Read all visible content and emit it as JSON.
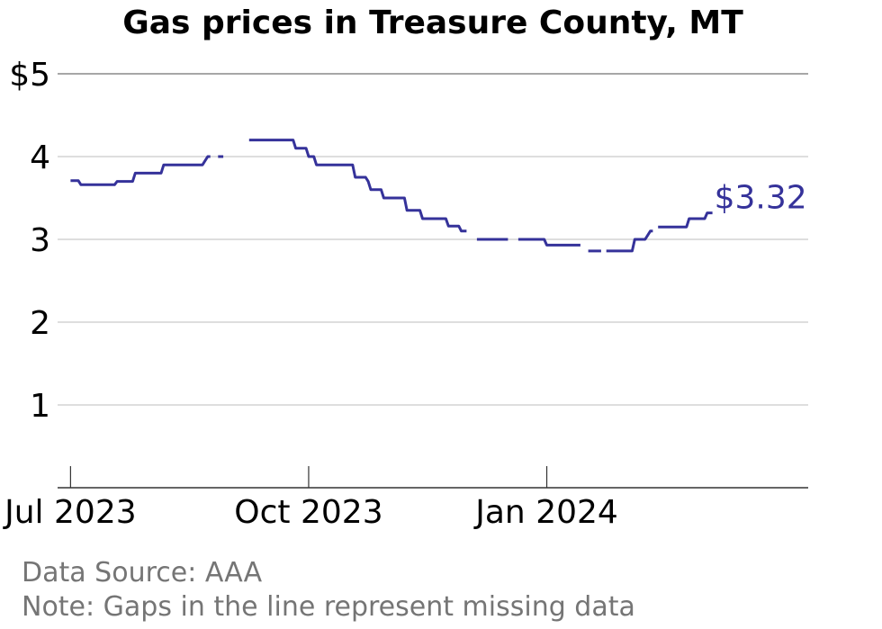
{
  "chart_data": {
    "type": "line",
    "title": "Gas prices in Treasure County, MT",
    "xlabel": "",
    "ylabel": "",
    "ylim": [
      0,
      5
    ],
    "xlim": [
      "2023-06-26",
      "2024-04-11"
    ],
    "y_ticks": [
      {
        "value": 5,
        "label": "$5"
      },
      {
        "value": 4,
        "label": "4"
      },
      {
        "value": 3,
        "label": "3"
      },
      {
        "value": 2,
        "label": "2"
      },
      {
        "value": 1,
        "label": "1"
      }
    ],
    "x_ticks": [
      {
        "value": "2023-07-01",
        "label": "Jul 2023"
      },
      {
        "value": "2023-10-01",
        "label": "Oct 2023"
      },
      {
        "value": "2024-01-01",
        "label": "Jan 2024"
      }
    ],
    "grid": true,
    "line_color": "#35329a",
    "end_label": "$3.32",
    "series": [
      {
        "segments": [
          [
            [
              "2023-07-01",
              3.71
            ],
            [
              "2023-07-04",
              3.71
            ],
            [
              "2023-07-05",
              3.66
            ],
            [
              "2023-07-18",
              3.66
            ],
            [
              "2023-07-19",
              3.7
            ],
            [
              "2023-07-25",
              3.7
            ],
            [
              "2023-07-26",
              3.8
            ],
            [
              "2023-08-05",
              3.8
            ],
            [
              "2023-08-06",
              3.9
            ],
            [
              "2023-08-21",
              3.9
            ],
            [
              "2023-08-23",
              4.0
            ],
            [
              "2023-08-24",
              4.0
            ]
          ],
          [
            [
              "2023-08-27",
              4.0
            ],
            [
              "2023-08-29",
              4.0
            ]
          ],
          [
            [
              "2023-09-08",
              4.2
            ],
            [
              "2023-09-25",
              4.2
            ],
            [
              "2023-09-26",
              4.1
            ],
            [
              "2023-09-30",
              4.1
            ],
            [
              "2023-10-01",
              4.0
            ],
            [
              "2023-10-03",
              4.0
            ],
            [
              "2023-10-04",
              3.9
            ],
            [
              "2023-10-18",
              3.9
            ],
            [
              "2023-10-19",
              3.75
            ],
            [
              "2023-10-23",
              3.75
            ],
            [
              "2023-10-24",
              3.7
            ],
            [
              "2023-10-25",
              3.6
            ],
            [
              "2023-10-29",
              3.6
            ],
            [
              "2023-10-30",
              3.5
            ],
            [
              "2023-11-07",
              3.5
            ],
            [
              "2023-11-08",
              3.35
            ],
            [
              "2023-11-13",
              3.35
            ],
            [
              "2023-11-14",
              3.25
            ],
            [
              "2023-11-23",
              3.25
            ],
            [
              "2023-11-24",
              3.16
            ],
            [
              "2023-11-28",
              3.16
            ],
            [
              "2023-11-29",
              3.1
            ],
            [
              "2023-12-01",
              3.1
            ]
          ],
          [
            [
              "2023-12-05",
              3.0
            ],
            [
              "2023-12-17",
              3.0
            ]
          ],
          [
            [
              "2023-12-21",
              3.0
            ],
            [
              "2023-12-31",
              3.0
            ],
            [
              "2024-01-01",
              2.93
            ],
            [
              "2024-01-14",
              2.93
            ]
          ],
          [
            [
              "2024-01-17",
              2.86
            ],
            [
              "2024-01-22",
              2.86
            ]
          ],
          [
            [
              "2024-01-24",
              2.86
            ],
            [
              "2024-02-03",
              2.86
            ],
            [
              "2024-02-04",
              3.0
            ],
            [
              "2024-02-08",
              3.0
            ],
            [
              "2024-02-10",
              3.1
            ],
            [
              "2024-02-11",
              3.1
            ]
          ],
          [
            [
              "2024-02-13",
              3.15
            ],
            [
              "2024-02-24",
              3.15
            ],
            [
              "2024-02-25",
              3.25
            ],
            [
              "2024-03-02",
              3.25
            ],
            [
              "2024-03-03",
              3.32
            ],
            [
              "2024-03-05",
              3.32
            ]
          ]
        ]
      }
    ]
  },
  "footer": {
    "source": "Data Source: AAA",
    "note": "Note: Gaps in the line represent missing data"
  }
}
